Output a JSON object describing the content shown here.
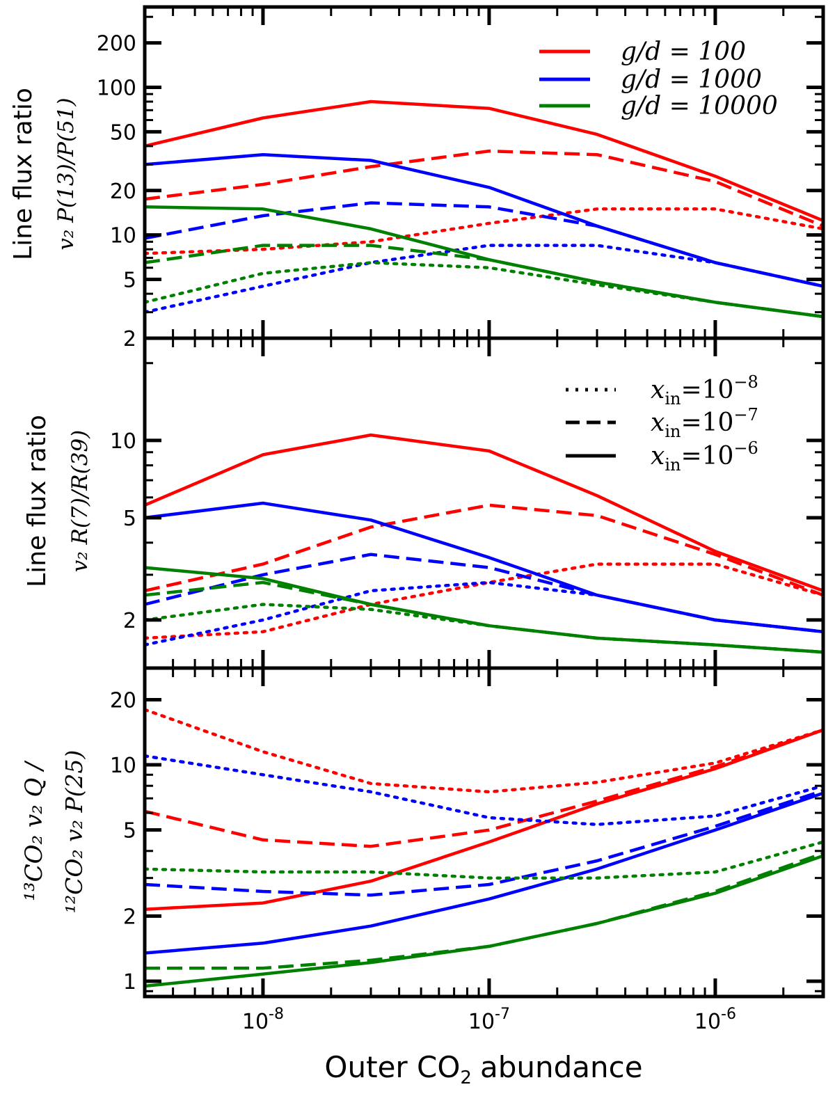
{
  "figure": {
    "xlabel": "Outer CO₂ abundance",
    "xlabel_main": "Outer CO",
    "xlabel_sub": "2",
    "xlabel_rest": "abundance"
  },
  "colors": {
    "g100": "#ff0000",
    "g1000": "#0000ff",
    "g10000": "#008000"
  },
  "legend_gd": [
    {
      "series": "g100",
      "text": "g/d = 100"
    },
    {
      "series": "g1000",
      "text": "g/d = 1000"
    },
    {
      "series": "g10000",
      "text": "g/d = 10000"
    }
  ],
  "legend_xin": [
    {
      "style": "dotted",
      "text": "x_in = 10^-8",
      "base": "x",
      "sub": "in",
      "eq": "=",
      "exp": "−8",
      "num": "10"
    },
    {
      "style": "dashed",
      "text": "x_in = 10^-7",
      "base": "x",
      "sub": "in",
      "eq": "=",
      "exp": "−7",
      "num": "10"
    },
    {
      "style": "solid",
      "text": "x_in = 10^-6",
      "base": "x",
      "sub": "in",
      "eq": "=",
      "exp": "−6",
      "num": "10"
    }
  ],
  "xticks": [
    {
      "value": 1e-08,
      "base": "10",
      "exp": "-8"
    },
    {
      "value": 1e-07,
      "base": "10",
      "exp": "-7"
    },
    {
      "value": 1e-06,
      "base": "10",
      "exp": "-6"
    }
  ],
  "panels": [
    {
      "ylabel_line1": "Line flux ratio",
      "ylabel_line2": "v₂ P(13)/P(51)"
    },
    {
      "ylabel_line1": "Line flux ratio",
      "ylabel_line2": "v₂ R(7)/R(39)"
    },
    {
      "ylabel_line1": "¹³CO₂ v₂ Q /",
      "ylabel_line2": "¹²CO₂ v₂ P(25)"
    }
  ],
  "chart_data": [
    {
      "type": "line",
      "title": "",
      "xlabel": "Outer CO2 abundance",
      "ylabel": "Line flux ratio v2 P(13)/P(51)",
      "xscale": "log",
      "yscale": "log",
      "xlim": [
        3e-09,
        3e-06
      ],
      "ylim": [
        2,
        350
      ],
      "yticks": [
        2,
        5,
        10,
        20,
        50,
        100,
        200
      ],
      "x": [
        3e-09,
        1e-08,
        3e-08,
        1e-07,
        3e-07,
        1e-06,
        3e-06
      ],
      "series": [
        {
          "name": "g/d=100, x_in=1e-6",
          "color": "g100",
          "style": "solid",
          "values": [
            40,
            62,
            80,
            72,
            48,
            25,
            12.5
          ]
        },
        {
          "name": "g/d=100, x_in=1e-7",
          "color": "g100",
          "style": "dashed",
          "values": [
            17.5,
            22,
            29,
            37,
            35,
            23,
            11.5
          ]
        },
        {
          "name": "g/d=100, x_in=1e-8",
          "color": "g100",
          "style": "dotted",
          "values": [
            7.5,
            8,
            9,
            12,
            15,
            15,
            11
          ]
        },
        {
          "name": "g/d=1000, x_in=1e-6",
          "color": "g1000",
          "style": "solid",
          "values": [
            30,
            35,
            32,
            21,
            11.5,
            6.5,
            4.5
          ]
        },
        {
          "name": "g/d=1000, x_in=1e-7",
          "color": "g1000",
          "style": "dashed",
          "values": [
            9.5,
            13.5,
            16.5,
            15.5,
            11.5,
            6.5,
            4.5
          ]
        },
        {
          "name": "g/d=1000, x_in=1e-8",
          "color": "g1000",
          "style": "dotted",
          "values": [
            3,
            4.5,
            6.5,
            8.5,
            8.5,
            6.5,
            4.5
          ]
        },
        {
          "name": "g/d=10000, x_in=1e-6",
          "color": "g10000",
          "style": "solid",
          "values": [
            15.5,
            15,
            11,
            6.8,
            4.8,
            3.5,
            2.8
          ]
        },
        {
          "name": "g/d=10000, x_in=1e-7",
          "color": "g10000",
          "style": "dashed",
          "values": [
            6.5,
            8.5,
            8.5,
            6.8,
            4.8,
            3.5,
            2.8
          ]
        },
        {
          "name": "g/d=10000, x_in=1e-8",
          "color": "g10000",
          "style": "dotted",
          "values": [
            3.5,
            5.5,
            6.5,
            6.0,
            4.6,
            3.5,
            2.8
          ]
        }
      ]
    },
    {
      "type": "line",
      "title": "",
      "xlabel": "Outer CO2 abundance",
      "ylabel": "Line flux ratio v2 R(7)/R(39)",
      "xscale": "log",
      "yscale": "log",
      "xlim": [
        3e-09,
        3e-06
      ],
      "ylim": [
        1.3,
        25
      ],
      "yticks": [
        2,
        5,
        10
      ],
      "x": [
        3e-09,
        1e-08,
        3e-08,
        1e-07,
        3e-07,
        1e-06,
        3e-06
      ],
      "series": [
        {
          "name": "g/d=100, x_in=1e-6",
          "color": "g100",
          "style": "solid",
          "values": [
            5.6,
            8.8,
            10.5,
            9.1,
            6.1,
            3.7,
            2.6
          ]
        },
        {
          "name": "g/d=100, x_in=1e-7",
          "color": "g100",
          "style": "dashed",
          "values": [
            2.6,
            3.3,
            4.6,
            5.6,
            5.1,
            3.6,
            2.5
          ]
        },
        {
          "name": "g/d=100, x_in=1e-8",
          "color": "g100",
          "style": "dotted",
          "values": [
            1.7,
            1.8,
            2.3,
            2.8,
            3.3,
            3.3,
            2.5
          ]
        },
        {
          "name": "g/d=1000, x_in=1e-6",
          "color": "g1000",
          "style": "solid",
          "values": [
            5.0,
            5.7,
            4.9,
            3.5,
            2.5,
            2.0,
            1.8
          ]
        },
        {
          "name": "g/d=1000, x_in=1e-7",
          "color": "g1000",
          "style": "dashed",
          "values": [
            2.3,
            3.0,
            3.6,
            3.2,
            2.5,
            2.0,
            1.8
          ]
        },
        {
          "name": "g/d=1000, x_in=1e-8",
          "color": "g1000",
          "style": "dotted",
          "values": [
            1.6,
            2.0,
            2.6,
            2.8,
            2.5,
            2.0,
            1.8
          ]
        },
        {
          "name": "g/d=10000, x_in=1e-6",
          "color": "g10000",
          "style": "solid",
          "values": [
            3.2,
            2.9,
            2.3,
            1.9,
            1.7,
            1.6,
            1.5
          ]
        },
        {
          "name": "g/d=10000, x_in=1e-7",
          "color": "g10000",
          "style": "dashed",
          "values": [
            2.5,
            2.8,
            2.3,
            1.9,
            1.7,
            1.6,
            1.5
          ]
        },
        {
          "name": "g/d=10000, x_in=1e-8",
          "color": "g10000",
          "style": "dotted",
          "values": [
            2.0,
            2.3,
            2.2,
            1.9,
            1.7,
            1.6,
            1.5
          ]
        }
      ]
    },
    {
      "type": "line",
      "title": "",
      "xlabel": "Outer CO2 abundance",
      "ylabel": "13CO2 v2 Q / 12CO2 v2 P(25)",
      "xscale": "log",
      "yscale": "log",
      "xlim": [
        3e-09,
        3e-06
      ],
      "ylim": [
        0.85,
        28
      ],
      "yticks": [
        1,
        2,
        5,
        10,
        20
      ],
      "x": [
        3e-09,
        1e-08,
        3e-08,
        1e-07,
        3e-07,
        1e-06,
        3e-06
      ],
      "series": [
        {
          "name": "g/d=100, x_in=1e-6",
          "color": "g100",
          "style": "solid",
          "values": [
            2.15,
            2.3,
            2.9,
            4.4,
            6.6,
            9.6,
            14.5
          ]
        },
        {
          "name": "g/d=100, x_in=1e-7",
          "color": "g100",
          "style": "dashed",
          "values": [
            6.1,
            4.5,
            4.2,
            5.0,
            6.8,
            9.8,
            14.5
          ]
        },
        {
          "name": "g/d=100, x_in=1e-8",
          "color": "g100",
          "style": "dotted",
          "values": [
            18,
            11.5,
            8.2,
            7.5,
            8.3,
            10.2,
            14.5
          ]
        },
        {
          "name": "g/d=1000, x_in=1e-6",
          "color": "g1000",
          "style": "solid",
          "values": [
            1.35,
            1.5,
            1.8,
            2.4,
            3.3,
            5.0,
            7.4
          ]
        },
        {
          "name": "g/d=1000, x_in=1e-7",
          "color": "g1000",
          "style": "dashed",
          "values": [
            2.8,
            2.6,
            2.5,
            2.8,
            3.6,
            5.2,
            7.6
          ]
        },
        {
          "name": "g/d=1000, x_in=1e-8",
          "color": "g1000",
          "style": "dotted",
          "values": [
            11,
            9.0,
            7.5,
            5.7,
            5.3,
            5.8,
            8.0
          ]
        },
        {
          "name": "g/d=10000, x_in=1e-6",
          "color": "g10000",
          "style": "solid",
          "values": [
            0.95,
            1.08,
            1.22,
            1.45,
            1.85,
            2.55,
            3.8
          ]
        },
        {
          "name": "g/d=10000, x_in=1e-7",
          "color": "g10000",
          "style": "dashed",
          "values": [
            1.15,
            1.15,
            1.25,
            1.45,
            1.85,
            2.6,
            3.9
          ]
        },
        {
          "name": "g/d=10000, x_in=1e-8",
          "color": "g10000",
          "style": "dotted",
          "values": [
            3.3,
            3.2,
            3.2,
            3.0,
            3.0,
            3.2,
            4.4
          ]
        }
      ]
    }
  ]
}
